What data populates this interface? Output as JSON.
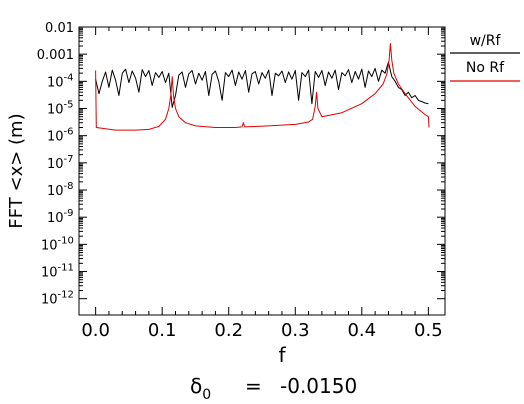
{
  "chart_data": {
    "type": "line",
    "title": "",
    "xlabel": "f",
    "ylabel": "FFT  <x>  (m)",
    "footer": {
      "symbol": "δ",
      "subscript": "0",
      "equals": "=",
      "value": "-0.0150"
    },
    "xlim": [
      -0.025,
      0.525
    ],
    "ylim_log10": [
      -12.6,
      -2.0
    ],
    "yscale": "log",
    "x_ticks": [
      "0.0",
      "0.1",
      "0.2",
      "0.3",
      "0.4",
      "0.5"
    ],
    "y_ticks": [
      {
        "text": "0.01",
        "exp": -2,
        "plain": true
      },
      {
        "text": "0.001",
        "exp": -3,
        "plain": true
      },
      {
        "text": "10",
        "sup": "-4",
        "exp": -4
      },
      {
        "text": "10",
        "sup": "-5",
        "exp": -5
      },
      {
        "text": "10",
        "sup": "-6",
        "exp": -6
      },
      {
        "text": "10",
        "sup": "-7",
        "exp": -7
      },
      {
        "text": "10",
        "sup": "-8",
        "exp": -8
      },
      {
        "text": "10",
        "sup": "-9",
        "exp": -9
      },
      {
        "text": "10",
        "sup": "-10",
        "exp": -10
      },
      {
        "text": "10",
        "sup": "-11",
        "exp": -11
      },
      {
        "text": "10",
        "sup": "-12",
        "exp": -12
      }
    ],
    "legend": {
      "placement": "right",
      "entries": [
        {
          "label": "w/Rf",
          "color": "#000000"
        },
        {
          "label": "No Rf",
          "color": "#e00000"
        }
      ]
    },
    "series": [
      {
        "name": "w/Rf",
        "color": "#000000",
        "points": [
          [
            0.0,
            0.00012
          ],
          [
            0.005,
            3.5e-05
          ],
          [
            0.01,
            0.0001
          ],
          [
            0.015,
            0.00022
          ],
          [
            0.02,
            6e-05
          ],
          [
            0.025,
            0.00026
          ],
          [
            0.03,
            0.00011
          ],
          [
            0.035,
            3e-05
          ],
          [
            0.04,
            0.0002
          ],
          [
            0.045,
            0.00028
          ],
          [
            0.05,
            9e-05
          ],
          [
            0.055,
            0.00024
          ],
          [
            0.06,
            0.00013
          ],
          [
            0.065,
            4e-05
          ],
          [
            0.07,
            0.00027
          ],
          [
            0.075,
            0.00015
          ],
          [
            0.08,
            0.00025
          ],
          [
            0.085,
            7e-05
          ],
          [
            0.09,
            0.00021
          ],
          [
            0.095,
            0.00014
          ],
          [
            0.1,
            0.00023
          ],
          [
            0.105,
            9e-05
          ],
          [
            0.11,
            0.0002
          ],
          [
            0.115,
            1.1e-05
          ],
          [
            0.12,
            3e-05
          ],
          [
            0.125,
            0.00017
          ],
          [
            0.13,
            0.00022
          ],
          [
            0.135,
            6e-05
          ],
          [
            0.14,
            0.00019
          ],
          [
            0.145,
            0.00025
          ],
          [
            0.15,
            8e-05
          ],
          [
            0.155,
            0.0002
          ],
          [
            0.16,
            0.00011
          ],
          [
            0.165,
            0.00023
          ],
          [
            0.17,
            3e-05
          ],
          [
            0.175,
            0.00018
          ],
          [
            0.18,
            0.00024
          ],
          [
            0.185,
            0.0001
          ],
          [
            0.19,
            2e-05
          ],
          [
            0.195,
            0.00021
          ],
          [
            0.2,
            0.00015
          ],
          [
            0.205,
            0.00026
          ],
          [
            0.21,
            7e-05
          ],
          [
            0.215,
            0.00022
          ],
          [
            0.22,
            0.00012
          ],
          [
            0.225,
            0.00025
          ],
          [
            0.23,
            4e-05
          ],
          [
            0.235,
            0.00019
          ],
          [
            0.24,
            0.00023
          ],
          [
            0.245,
            8e-05
          ],
          [
            0.25,
            0.00021
          ],
          [
            0.255,
            0.00013
          ],
          [
            0.26,
            0.00026
          ],
          [
            0.265,
            3e-05
          ],
          [
            0.27,
            0.0002
          ],
          [
            0.275,
            0.00016
          ],
          [
            0.28,
            0.00024
          ],
          [
            0.285,
            9e-05
          ],
          [
            0.29,
            0.00022
          ],
          [
            0.295,
            0.00012
          ],
          [
            0.3,
            0.00025
          ],
          [
            0.305,
            2e-05
          ],
          [
            0.31,
            0.00021
          ],
          [
            0.315,
            0.00015
          ],
          [
            0.32,
            0.00026
          ],
          [
            0.325,
            1.5e-05
          ],
          [
            0.33,
            0.00023
          ],
          [
            0.335,
            0.00014
          ],
          [
            0.34,
            0.00025
          ],
          [
            0.345,
            7e-05
          ],
          [
            0.35,
            0.00022
          ],
          [
            0.355,
            0.00013
          ],
          [
            0.36,
            0.00026
          ],
          [
            0.365,
            5e-05
          ],
          [
            0.37,
            0.00021
          ],
          [
            0.375,
            0.00016
          ],
          [
            0.38,
            0.00027
          ],
          [
            0.385,
            9e-05
          ],
          [
            0.39,
            0.00023
          ],
          [
            0.395,
            0.00012
          ],
          [
            0.4,
            0.00028
          ],
          [
            0.405,
            6e-05
          ],
          [
            0.41,
            0.00024
          ],
          [
            0.415,
            0.00015
          ],
          [
            0.42,
            0.0003
          ],
          [
            0.425,
            0.0001
          ],
          [
            0.43,
            0.00026
          ],
          [
            0.435,
            0.0002
          ],
          [
            0.44,
            0.0005
          ],
          [
            0.445,
            0.00015
          ],
          [
            0.45,
            0.0001
          ],
          [
            0.455,
            6e-05
          ],
          [
            0.46,
            5e-05
          ],
          [
            0.465,
            3e-05
          ],
          [
            0.47,
            4e-05
          ],
          [
            0.475,
            2.5e-05
          ],
          [
            0.48,
            3e-05
          ],
          [
            0.485,
            2e-05
          ],
          [
            0.49,
            1.8e-05
          ],
          [
            0.495,
            1.6e-05
          ],
          [
            0.5,
            1.5e-05
          ]
        ]
      },
      {
        "name": "No Rf",
        "color": "#e00000",
        "points": [
          [
            0.0,
            0.00025
          ],
          [
            0.001,
            2e-06
          ],
          [
            0.03,
            1.6e-06
          ],
          [
            0.06,
            1.6e-06
          ],
          [
            0.08,
            1.7e-06
          ],
          [
            0.095,
            2.2e-06
          ],
          [
            0.105,
            4e-06
          ],
          [
            0.11,
            1e-05
          ],
          [
            0.113,
            3e-05
          ],
          [
            0.115,
            0.00015
          ],
          [
            0.117,
            3e-05
          ],
          [
            0.12,
            1e-05
          ],
          [
            0.125,
            5e-06
          ],
          [
            0.135,
            3e-06
          ],
          [
            0.15,
            2.3e-06
          ],
          [
            0.18,
            2e-06
          ],
          [
            0.21,
            2e-06
          ],
          [
            0.22,
            2.1e-06
          ],
          [
            0.222,
            3e-06
          ],
          [
            0.224,
            2.1e-06
          ],
          [
            0.26,
            2.3e-06
          ],
          [
            0.3,
            2.6e-06
          ],
          [
            0.32,
            3.2e-06
          ],
          [
            0.326,
            4e-06
          ],
          [
            0.33,
            1.2e-05
          ],
          [
            0.332,
            4e-05
          ],
          [
            0.334,
            1e-05
          ],
          [
            0.34,
            5e-06
          ],
          [
            0.37,
            7e-06
          ],
          [
            0.4,
            1.5e-05
          ],
          [
            0.42,
            3.5e-05
          ],
          [
            0.432,
            8e-05
          ],
          [
            0.438,
            0.0002
          ],
          [
            0.441,
            0.0006
          ],
          [
            0.443,
            0.0025
          ],
          [
            0.445,
            0.0006
          ],
          [
            0.448,
            0.0002
          ],
          [
            0.455,
            8e-05
          ],
          [
            0.465,
            3.5e-05
          ],
          [
            0.48,
            1.2e-05
          ],
          [
            0.495,
            6e-06
          ],
          [
            0.5,
            5e-06
          ],
          [
            0.501,
            2e-06
          ]
        ]
      }
    ]
  }
}
